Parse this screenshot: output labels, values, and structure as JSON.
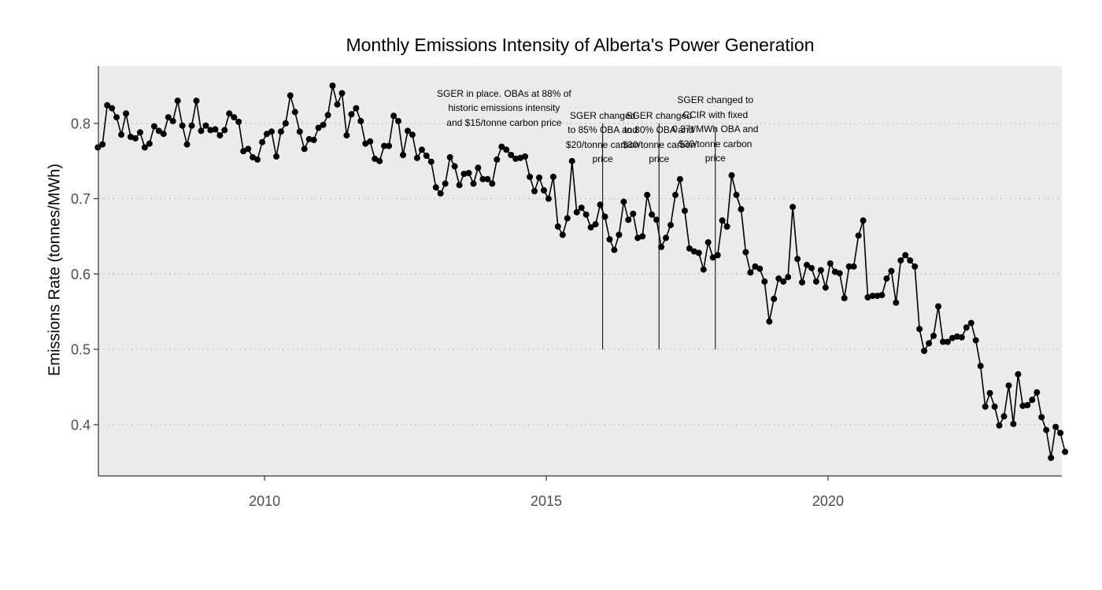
{
  "chart_data": {
    "type": "line",
    "title": "Monthly Emissions Intensity of Alberta's Power Generation",
    "xlabel": "",
    "ylabel": "Emissions Rate (tonnes/MWh)",
    "x_start": "2007-01",
    "x_end": "2024-02",
    "xlim": [
      2007.05,
      2024.15
    ],
    "ylim": [
      0.332,
      0.876
    ],
    "x_ticks": [
      {
        "value": 2010,
        "label": "2010"
      },
      {
        "value": 2015,
        "label": "2015"
      },
      {
        "value": 2020,
        "label": "2020"
      }
    ],
    "y_ticks": [
      {
        "value": 0.4,
        "label": "0.4"
      },
      {
        "value": 0.5,
        "label": "0.5"
      },
      {
        "value": 0.6,
        "label": "0.6"
      },
      {
        "value": 0.7,
        "label": "0.7"
      },
      {
        "value": 0.8,
        "label": "0.8"
      }
    ],
    "grid": "horizontal dotted",
    "background": "#ebebeb",
    "line_color": "#000000",
    "point_color": "#000000",
    "series": [
      {
        "values": [
          0.768,
          0.772,
          0.824,
          0.82,
          0.808,
          0.785,
          0.813,
          0.782,
          0.78,
          0.788,
          0.768,
          0.773,
          0.796,
          0.79,
          0.786,
          0.808,
          0.803,
          0.83,
          0.797,
          0.772,
          0.797,
          0.83,
          0.79,
          0.797,
          0.791,
          0.792,
          0.784,
          0.791,
          0.813,
          0.808,
          0.802,
          0.763,
          0.766,
          0.755,
          0.752,
          0.775,
          0.786,
          0.789,
          0.756,
          0.789,
          0.8,
          0.837,
          0.815,
          0.789,
          0.766,
          0.779,
          0.778,
          0.794,
          0.798,
          0.811,
          0.85,
          0.825,
          0.84,
          0.784,
          0.812,
          0.82,
          0.803,
          0.773,
          0.776,
          0.753,
          0.75,
          0.77,
          0.77,
          0.81,
          0.803,
          0.758,
          0.79,
          0.785,
          0.754,
          0.765,
          0.757,
          0.749,
          0.715,
          0.707,
          0.72,
          0.755,
          0.743,
          0.718,
          0.733,
          0.734,
          0.72,
          0.741,
          0.726,
          0.726,
          0.72,
          0.752,
          0.769,
          0.765,
          0.758,
          0.753,
          0.754,
          0.756,
          0.729,
          0.71,
          0.728,
          0.711,
          0.7,
          0.729,
          0.663,
          0.652,
          0.674,
          0.75,
          0.682,
          0.688,
          0.679,
          0.662,
          0.666,
          0.692,
          0.676,
          0.646,
          0.632,
          0.652,
          0.696,
          0.672,
          0.68,
          0.648,
          0.65,
          0.705,
          0.679,
          0.672,
          0.636,
          0.648,
          0.665,
          0.705,
          0.726,
          0.684,
          0.634,
          0.63,
          0.628,
          0.606,
          0.642,
          0.622,
          0.625,
          0.671,
          0.663,
          0.731,
          0.705,
          0.686,
          0.629,
          0.602,
          0.61,
          0.607,
          0.59,
          0.537,
          0.567,
          0.594,
          0.59,
          0.596,
          0.689,
          0.62,
          0.589,
          0.612,
          0.608,
          0.59,
          0.605,
          0.582,
          0.614,
          0.603,
          0.601,
          0.568,
          0.61,
          0.61,
          0.651,
          0.671,
          0.569,
          0.571,
          0.571,
          0.572,
          0.594,
          0.604,
          0.562,
          0.618,
          0.625,
          0.618,
          0.61,
          0.527,
          0.498,
          0.508,
          0.518,
          0.557,
          0.51,
          0.51,
          0.515,
          0.517,
          0.516,
          0.529,
          0.535,
          0.512,
          0.478,
          0.424,
          0.442,
          0.424,
          0.399,
          0.411,
          0.452,
          0.401,
          0.467,
          0.425,
          0.426,
          0.433,
          0.443,
          0.41,
          0.393,
          0.356,
          0.397,
          0.389,
          0.364
        ]
      }
    ],
    "annotations": [
      {
        "text": "SGER in place. OBAs at 88% of\nhistoric emissions intensity\nand $15/tonne carbon price",
        "x": 2014.25,
        "y_top": 0.849
      },
      {
        "text": "SGER changed\nto 85% OBA and\n$20/tonne carbon\nprice",
        "x": 2016.0,
        "y_top": 0.82,
        "line_from": 0.5,
        "line_to": 0.8
      },
      {
        "text": "SGER changed\nto 80% OBA and\n$30/tonne carbon\nprice",
        "x": 2017.0,
        "y_top": 0.82,
        "line_from": 0.5,
        "line_to": 0.8
      },
      {
        "text": "SGER changed to\nCCIR with fixed\n0.37t/MWh OBA and\n$30/tonne carbon\nprice",
        "x": 2018.0,
        "y_top": 0.84,
        "line_from": 0.5,
        "line_to": 0.795
      }
    ]
  }
}
